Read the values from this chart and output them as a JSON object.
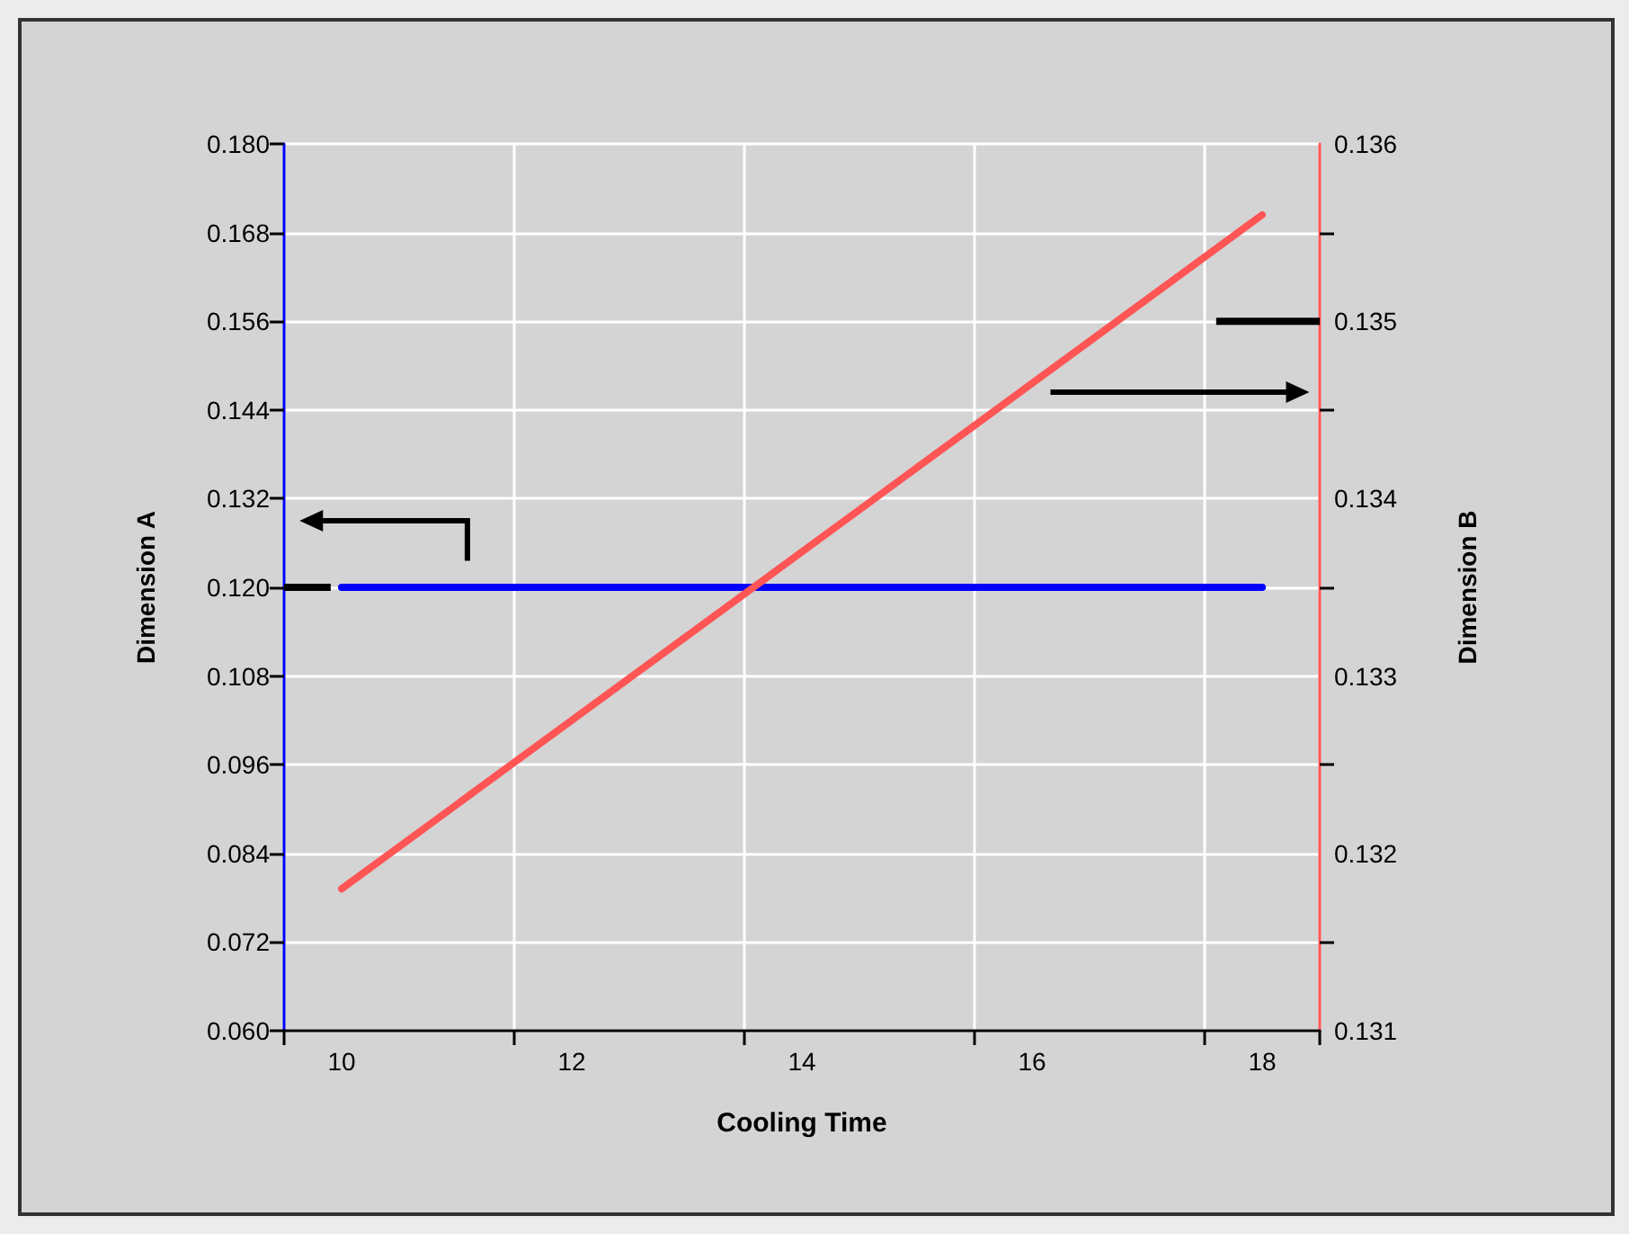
{
  "chart_data": {
    "type": "line",
    "xlabel": "Cooling Time",
    "ylabel": "Dimension A",
    "y2label": "Dimension B",
    "x": [
      10,
      18
    ],
    "xlim": [
      9.5,
      18.5
    ],
    "xticks": [
      {
        "value": 9.5,
        "label": null
      },
      {
        "value": 10,
        "label": "10"
      },
      {
        "value": 11.5,
        "label": null
      },
      {
        "value": 12,
        "label": "12"
      },
      {
        "value": 13.5,
        "label": null
      },
      {
        "value": 14,
        "label": "14"
      },
      {
        "value": 15.5,
        "label": null
      },
      {
        "value": 16,
        "label": "16"
      },
      {
        "value": 17.5,
        "label": null
      },
      {
        "value": 18,
        "label": "18"
      },
      {
        "value": 18.5,
        "label": null
      }
    ],
    "ylim": [
      0.06,
      0.18
    ],
    "yticks": [
      {
        "value": 0.06,
        "label": "0.060"
      },
      {
        "value": 0.072,
        "label": "0.072"
      },
      {
        "value": 0.084,
        "label": "0.084"
      },
      {
        "value": 0.096,
        "label": "0.096"
      },
      {
        "value": 0.108,
        "label": "0.108"
      },
      {
        "value": 0.12,
        "label": "0.120"
      },
      {
        "value": 0.132,
        "label": "0.132"
      },
      {
        "value": 0.144,
        "label": "0.144"
      },
      {
        "value": 0.156,
        "label": "0.156"
      },
      {
        "value": 0.168,
        "label": "0.168"
      },
      {
        "value": 0.18,
        "label": "0.180"
      }
    ],
    "y2lim": [
      0.131,
      0.136
    ],
    "y2ticks": [
      {
        "value": 0.131,
        "label": "0.131"
      },
      {
        "value": 0.1315,
        "label": null
      },
      {
        "value": 0.132,
        "label": "0.132"
      },
      {
        "value": 0.1325,
        "label": null
      },
      {
        "value": 0.133,
        "label": "0.133"
      },
      {
        "value": 0.1335,
        "label": null
      },
      {
        "value": 0.134,
        "label": "0.134"
      },
      {
        "value": 0.1345,
        "label": null
      },
      {
        "value": 0.135,
        "label": "0.135"
      },
      {
        "value": 0.1355,
        "label": null
      },
      {
        "value": 0.136,
        "label": "0.136"
      }
    ],
    "series": [
      {
        "color": "#0000ff",
        "values": [
          0.12,
          0.12
        ]
      },
      {
        "color": "#ff5555",
        "values": [
          0.1318,
          0.1356
        ],
        "axis": "y2"
      }
    ],
    "grid": true,
    "marker": "none",
    "line_style": "solid"
  }
}
